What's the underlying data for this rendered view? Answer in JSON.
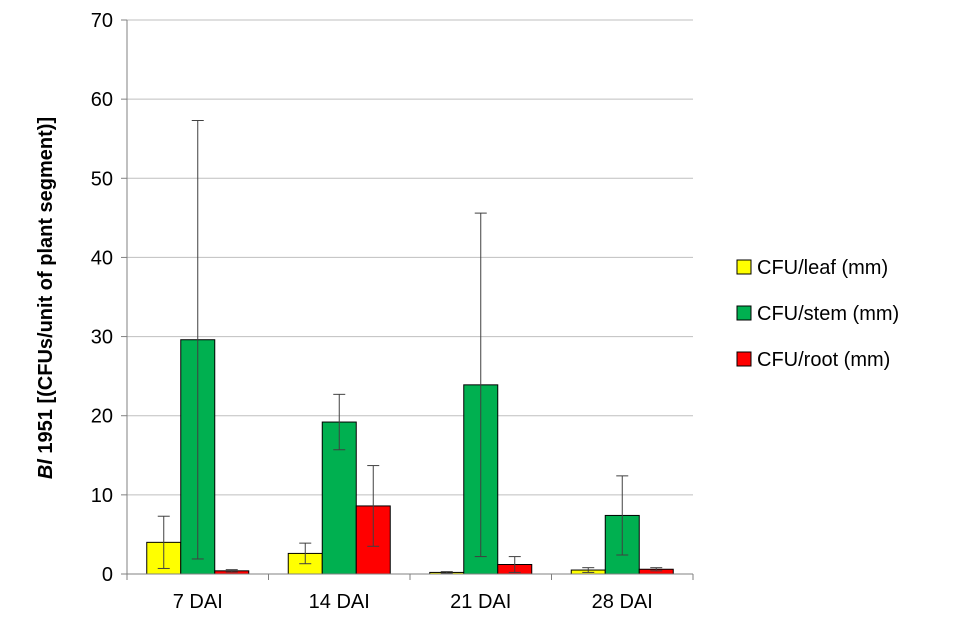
{
  "chart_data": {
    "type": "bar",
    "categories": [
      "7 DAI",
      "14 DAI",
      "21 DAI",
      "28 DAI"
    ],
    "series": [
      {
        "name": "CFU/leaf (mm)",
        "color": "#ffff00",
        "values": [
          4.0,
          2.6,
          0.2,
          0.5
        ],
        "error": [
          3.3,
          1.3,
          0.1,
          0.3
        ]
      },
      {
        "name": "CFU/stem (mm)",
        "color": "#00b050",
        "values": [
          29.6,
          19.2,
          23.9,
          7.4
        ],
        "error": [
          27.7,
          3.5,
          21.7,
          5.0
        ]
      },
      {
        "name": "CFU/root (mm)",
        "color": "#ff0000",
        "values": [
          0.4,
          8.6,
          1.2,
          0.6
        ],
        "error": [
          0.15,
          5.1,
          1.0,
          0.2
        ]
      }
    ],
    "ylabel_italic": "Bl",
    "ylabel_rest": " 1951 [(CFUs/unit of plant segment)]",
    "ylim": [
      0,
      70
    ],
    "yticks": [
      0,
      10,
      20,
      30,
      40,
      50,
      60,
      70
    ],
    "grid": true,
    "legend_position": "right"
  }
}
